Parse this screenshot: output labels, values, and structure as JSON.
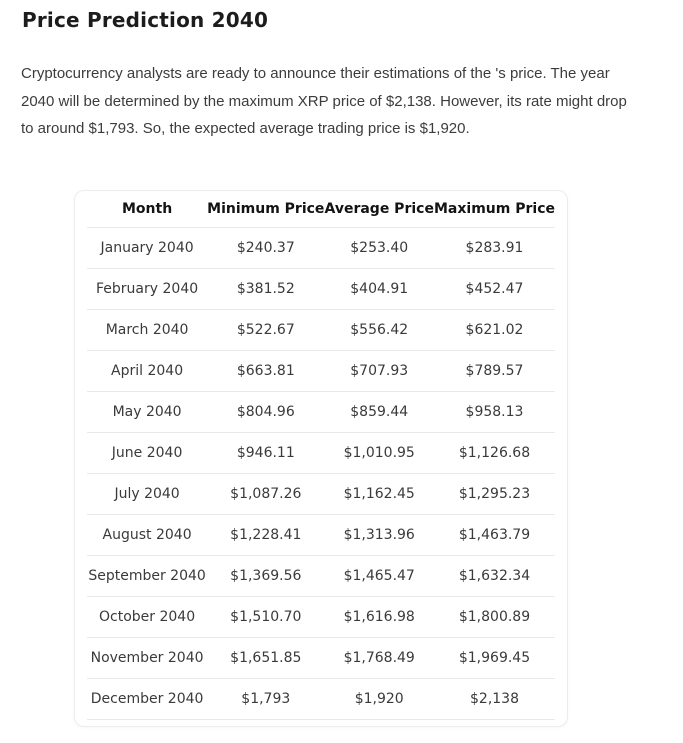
{
  "page": {
    "title": "Price Prediction 2040",
    "paragraph": "Cryptocurrency analysts are ready to announce their estimations of the 's price. The year 2040 will be determined by the maximum XRP price of $2,138. However, its rate might drop to around $1,793. So, the expected average trading price is $1,920."
  },
  "table": {
    "columns": [
      "Month",
      "Minimum Price",
      "Average Price",
      "Maximum Price"
    ],
    "rows": [
      [
        "January 2040",
        "$240.37",
        "$253.40",
        "$283.91"
      ],
      [
        "February 2040",
        "$381.52",
        "$404.91",
        "$452.47"
      ],
      [
        "March 2040",
        "$522.67",
        "$556.42",
        "$621.02"
      ],
      [
        "April 2040",
        "$663.81",
        "$707.93",
        "$789.57"
      ],
      [
        "May 2040",
        "$804.96",
        "$859.44",
        "$958.13"
      ],
      [
        "June 2040",
        "$946.11",
        "$1,010.95",
        "$1,126.68"
      ],
      [
        "July 2040",
        "$1,087.26",
        "$1,162.45",
        "$1,295.23"
      ],
      [
        "August 2040",
        "$1,228.41",
        "$1,313.96",
        "$1,463.79"
      ],
      [
        "September 2040",
        "$1,369.56",
        "$1,465.47",
        "$1,632.34"
      ],
      [
        "October 2040",
        "$1,510.70",
        "$1,616.98",
        "$1,800.89"
      ],
      [
        "November 2040",
        "$1,651.85",
        "$1,768.49",
        "$1,969.45"
      ],
      [
        "December 2040",
        "$1,793",
        "$1,920",
        "$2,138"
      ]
    ]
  },
  "colors": {
    "background": "#ffffff",
    "heading_text": "#1c1c1c",
    "body_text": "#3c3c3c",
    "table_header_text": "#131313",
    "table_cell_text": "#3a3a3a",
    "divider": "#e9e9e9",
    "card_border": "#ececec"
  }
}
